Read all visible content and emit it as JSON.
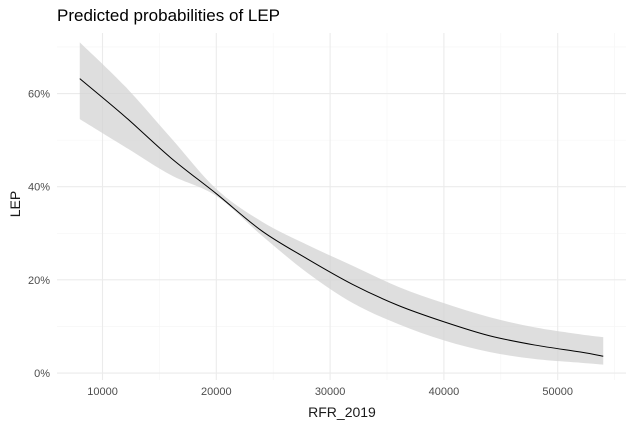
{
  "chart_data": {
    "type": "line",
    "title": "Predicted probabilities of LEP",
    "xlabel": "RFR_2019",
    "ylabel": "LEP",
    "xlim": [
      6000,
      56000
    ],
    "ylim": [
      -1.5,
      73
    ],
    "x_ticks": [
      10000,
      20000,
      30000,
      40000,
      50000
    ],
    "x_tick_labels": [
      "10000",
      "20000",
      "30000",
      "40000",
      "50000"
    ],
    "y_ticks": [
      0,
      20,
      40,
      60
    ],
    "y_tick_labels": [
      "0%",
      "20%",
      "40%",
      "60%"
    ],
    "grid": true,
    "legend": "none",
    "colors": {
      "line": "#000000",
      "ribbon": "#d3d3d3",
      "grid_major": "#ebebeb",
      "grid_minor": "#f5f5f5"
    },
    "series": [
      {
        "x": [
          8000,
          12000,
          16000,
          20000,
          24000,
          28000,
          32000,
          36000,
          40000,
          44000,
          48000,
          52000,
          54000
        ],
        "values": [
          63.2,
          55.0,
          46.2,
          38.5,
          30.5,
          24.5,
          19.0,
          14.5,
          11.0,
          8.0,
          6.0,
          4.5,
          3.6
        ],
        "lower": [
          54.5,
          48.5,
          42.5,
          38.0,
          29.5,
          21.5,
          15.0,
          10.5,
          7.0,
          4.5,
          3.0,
          2.2,
          1.8
        ],
        "upper": [
          71.0,
          61.5,
          50.5,
          39.5,
          32.5,
          27.5,
          23.0,
          18.5,
          15.0,
          12.0,
          9.8,
          8.3,
          7.7
        ]
      }
    ]
  }
}
